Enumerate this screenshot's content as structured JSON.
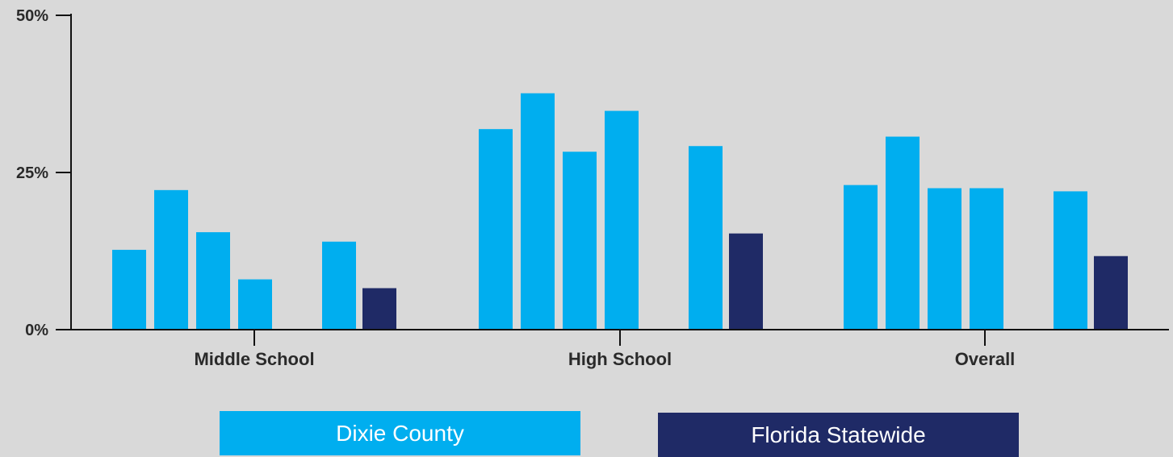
{
  "chart_data": {
    "type": "bar",
    "categories": [
      "Middle School",
      "High School",
      "Overall"
    ],
    "y_ticks": [
      "0%",
      "25%",
      "50%"
    ],
    "ylim": [
      0,
      50
    ],
    "grid": false,
    "legend_position": "bottom",
    "series": [
      {
        "name": "Dixie County",
        "color": "#00aeef",
        "group": "Dixie County",
        "values": [
          12.7,
          31.9,
          23.0
        ]
      },
      {
        "name": "Dixie County",
        "color": "#00aeef",
        "group": "Dixie County",
        "values": [
          22.2,
          37.6,
          30.7
        ]
      },
      {
        "name": "Dixie County",
        "color": "#00aeef",
        "group": "Dixie County",
        "values": [
          15.5,
          28.3,
          22.5
        ]
      },
      {
        "name": "Dixie County",
        "color": "#00aeef",
        "group": "Dixie County",
        "values": [
          8.0,
          34.8,
          22.5
        ]
      },
      {
        "name": "Dixie County",
        "color": "#00aeef",
        "group": "Dixie County",
        "values": [
          14.0,
          29.2,
          22.0
        ]
      },
      {
        "name": "Florida Statewide",
        "color": "#1f2a66",
        "group": "Florida Statewide",
        "values": [
          6.6,
          15.3,
          11.7
        ]
      }
    ]
  },
  "legend": {
    "items": [
      {
        "label": "Dixie County",
        "color": "#00aeef"
      },
      {
        "label": "Florida Statewide",
        "color": "#1f2a66"
      }
    ]
  }
}
